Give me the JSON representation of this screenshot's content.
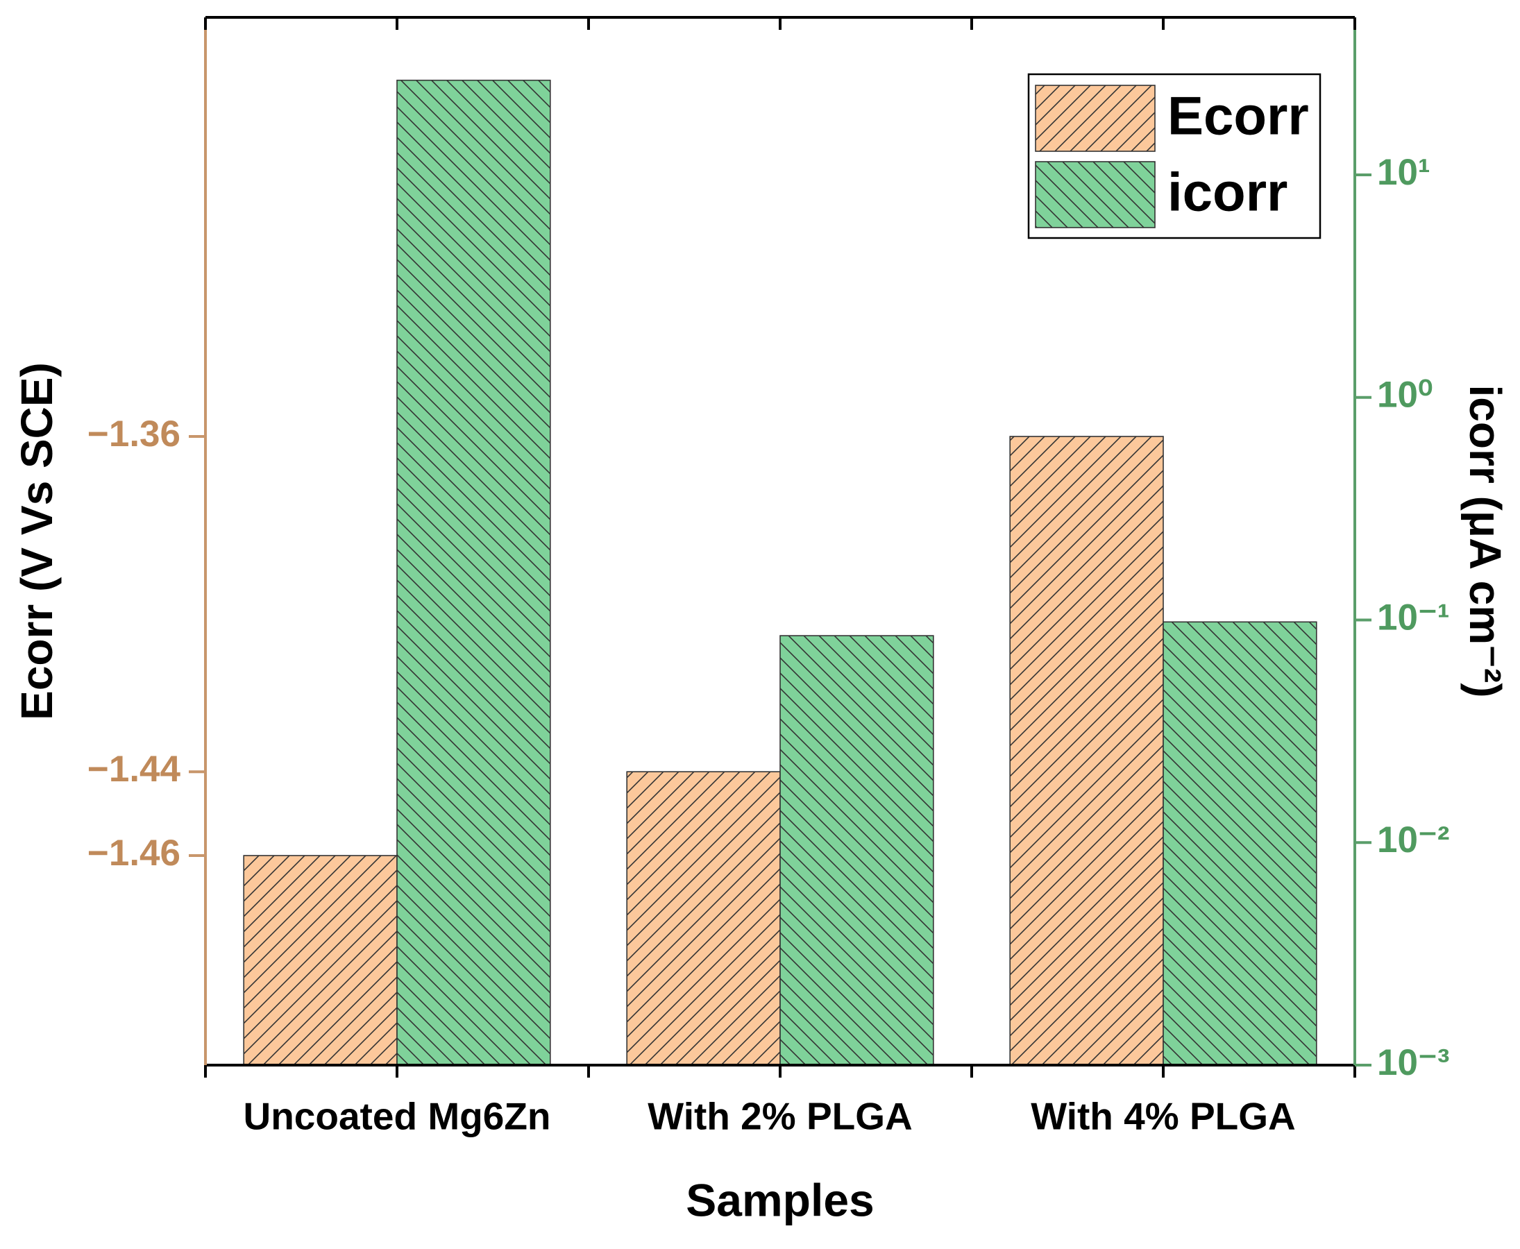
{
  "chart_data": {
    "type": "bar",
    "xlabel": "Samples",
    "ylabel": "Ecorr (V Vs SCE)",
    "y2label": "icorr (μA cm⁻²)",
    "categories": [
      "Uncoated Mg6Zn",
      "With 2% PLGA",
      "With 4% PLGA"
    ],
    "series": [
      {
        "name": "Ecorr",
        "color": "#fcc89b",
        "values": [
          -1.46,
          -1.44,
          -1.36
        ]
      },
      {
        "name": "icorr",
        "color": "#7fd29a",
        "axis": "y2",
        "values": [
          26.6,
          0.085,
          0.098
        ]
      }
    ],
    "ylim": [
      -1.51,
      -1.26
    ],
    "yticks": [
      {
        "value": -1.36,
        "label": "−1.36"
      },
      {
        "value": -1.44,
        "label": "−1.44"
      },
      {
        "value": -1.46,
        "label": "−1.46"
      }
    ],
    "y2lim": [
      0.001,
      51
    ],
    "y2scale": "log",
    "y2ticks": [
      {
        "value": 0.001,
        "label": "10⁻³"
      },
      {
        "value": 0.01,
        "label": "10⁻²"
      },
      {
        "value": 0.1,
        "label": "10⁻¹"
      },
      {
        "value": 1,
        "label": "10⁰"
      },
      {
        "value": 10,
        "label": "10¹"
      }
    ],
    "legend": "upper right"
  }
}
